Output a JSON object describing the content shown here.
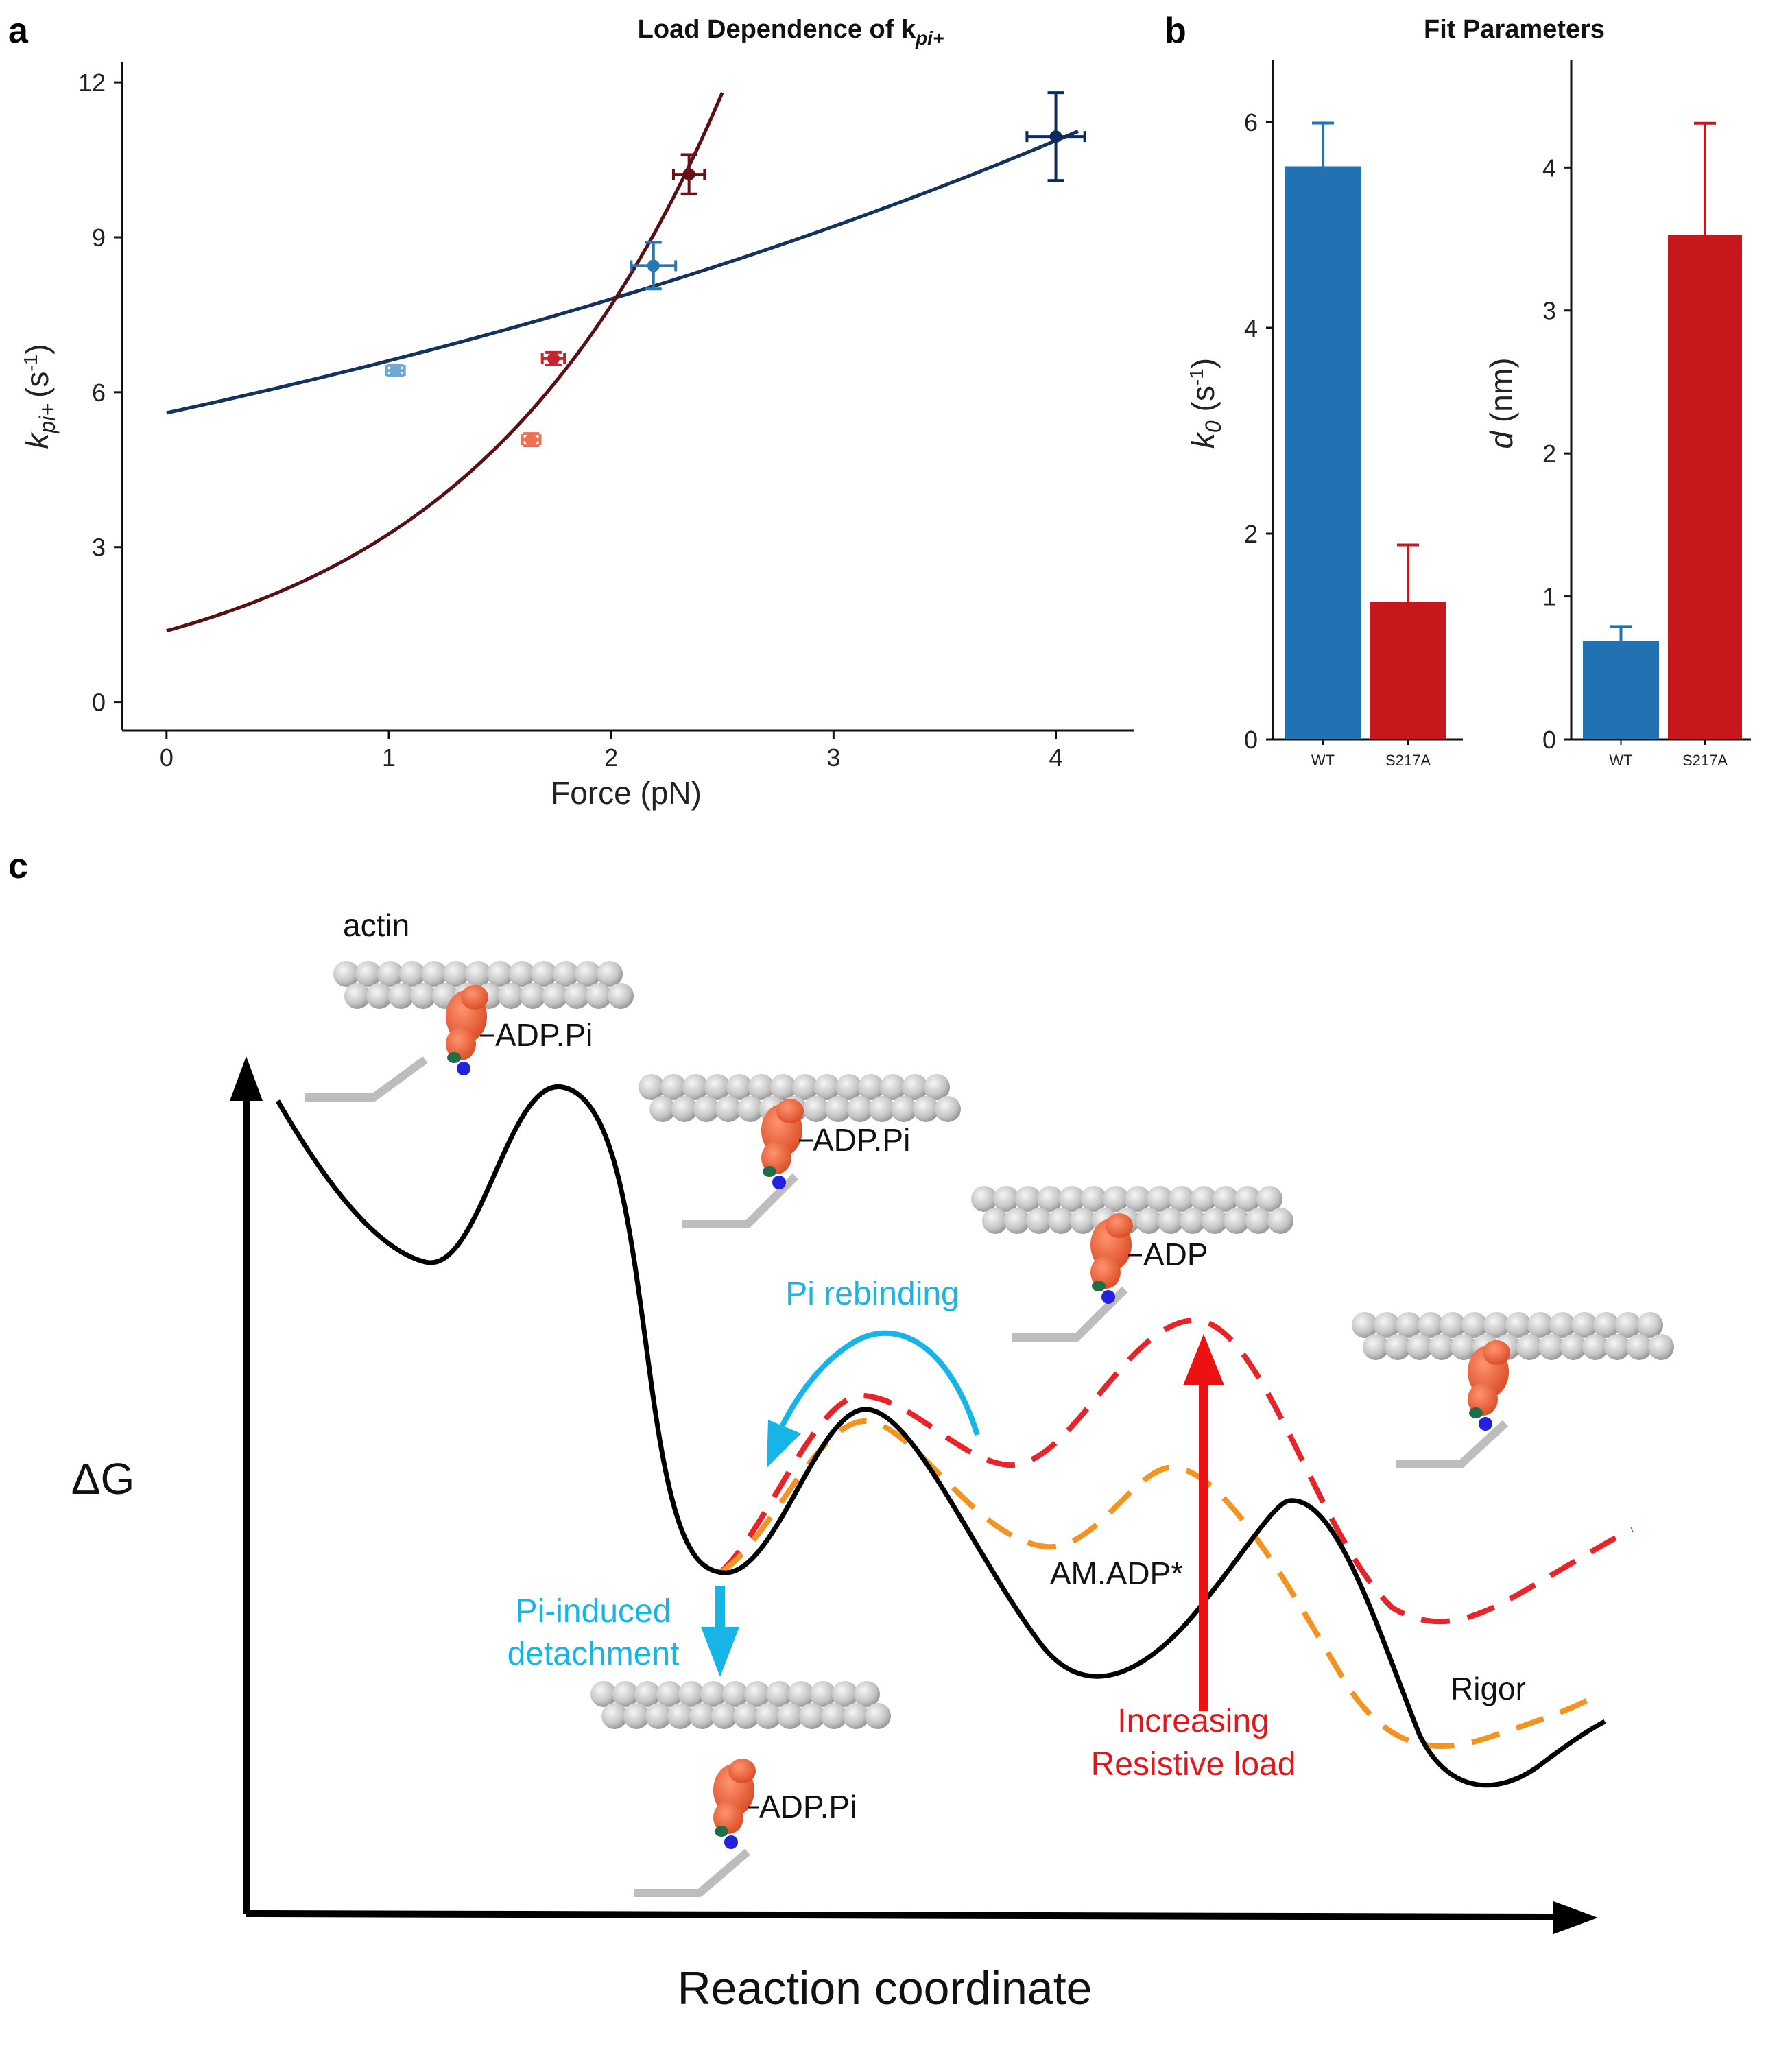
{
  "panels": {
    "a": "a",
    "b": "b",
    "c": "c"
  },
  "chart_data": [
    {
      "type": "scatter",
      "title": "Load Dependence of k",
      "title_sub": "pi+",
      "xlabel": "Force (pN)",
      "ylabel_main": "k",
      "ylabel_sub": "pi+",
      "ylabel_unit": "(s",
      "ylabel_sup": "-1",
      "ylabel_close": ")",
      "xlim": [
        -0.2,
        4.35
      ],
      "ylim": [
        -0.55,
        12.4
      ],
      "xticks": [
        0,
        1,
        2,
        3,
        4
      ],
      "yticks": [
        0,
        3,
        6,
        9,
        12
      ],
      "grid": false,
      "series": [
        {
          "color": "#6fa8d6",
          "points": [
            {
              "x": 1.03,
              "y": 6.42,
              "xerr": 0.04,
              "yerr": 0.1
            }
          ]
        },
        {
          "color": "#2878b5",
          "points": [
            {
              "x": 2.19,
              "y": 8.45,
              "xerr": 0.1,
              "yerr": 0.45
            }
          ]
        },
        {
          "color": "#0d2b5e",
          "points": [
            {
              "x": 4.0,
              "y": 10.95,
              "xerr": 0.13,
              "yerr": 0.85
            }
          ]
        },
        {
          "color": "#ef6f50",
          "points": [
            {
              "x": 1.64,
              "y": 5.08,
              "xerr": 0.04,
              "yerr": 0.12
            }
          ]
        },
        {
          "color": "#c8242c",
          "points": [
            {
              "x": 1.74,
              "y": 6.65,
              "xerr": 0.05,
              "yerr": 0.12
            }
          ]
        },
        {
          "color": "#6b0e16",
          "points": [
            {
              "x": 2.35,
              "y": 10.22,
              "xerr": 0.07,
              "yerr": 0.38
            }
          ]
        }
      ],
      "fits": [
        {
          "color": "#14325e",
          "k0": 5.6,
          "d": 0.68,
          "x_range": [
            0,
            4.1
          ]
        },
        {
          "color": "#5a0f14",
          "k0": 1.38,
          "d": 3.52,
          "x_range": [
            0,
            2.5
          ]
        }
      ]
    },
    {
      "type": "bar",
      "title": "Fit Parameters",
      "subplots": [
        {
          "ylabel_main": "k",
          "ylabel_sub": "0",
          "ylabel_unit": " (s",
          "ylabel_sup": "-1",
          "ylabel_close": ")",
          "ylim": [
            0,
            6.6
          ],
          "yticks": [
            0,
            2,
            4,
            6
          ],
          "categories": [
            "WT",
            "S217A"
          ],
          "values": [
            5.57,
            1.34
          ],
          "errors": [
            0.42,
            0.55
          ],
          "colors": [
            "#2271b3",
            "#c8161d"
          ]
        },
        {
          "ylabel_main": "d",
          "ylabel_sub": "",
          "ylabel_unit": " (nm)",
          "ylabel_sup": "",
          "ylabel_close": "",
          "ylim": [
            0,
            4.75
          ],
          "yticks": [
            0,
            1,
            2,
            3,
            4
          ],
          "categories": [
            "WT",
            "S217A"
          ],
          "values": [
            0.69,
            3.53
          ],
          "errors": [
            0.1,
            0.78
          ],
          "colors": [
            "#2271b3",
            "#c8161d"
          ]
        }
      ]
    }
  ],
  "diagram": {
    "actin": "actin",
    "adp_pi_1": "ADP.Pi",
    "adp_pi_2": "ADP.Pi",
    "adp_pi_3": "ADP.Pi",
    "adp": "ADP",
    "pi_rebinding": "Pi rebinding",
    "pi_induced_1": "Pi-induced",
    "pi_induced_2": "detachment",
    "am_adp": "AM.ADP*",
    "rigor": "Rigor",
    "increasing": "Increasing",
    "resistive": "Resistive load",
    "delta_g": "ΔG",
    "reaction_coordinate": "Reaction coordinate",
    "colors": {
      "solid": "#000000",
      "red_dash": "#e8242b",
      "orange_dash": "#f39322",
      "cyan": "#17b4e8",
      "red_arrow": "#ee1111"
    }
  }
}
